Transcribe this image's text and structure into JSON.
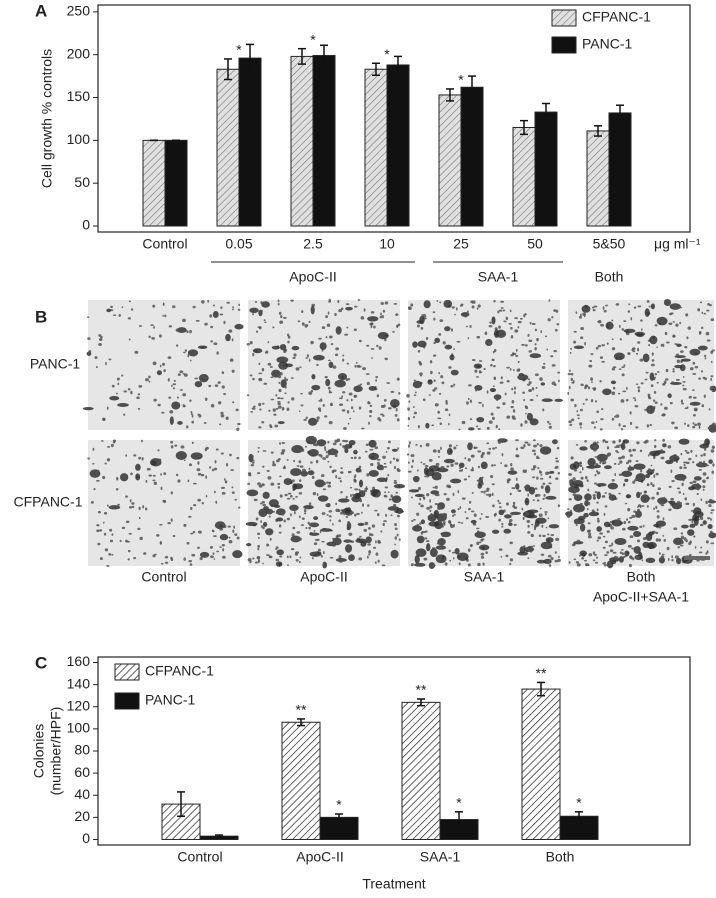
{
  "chart_data": [
    {
      "type": "bar",
      "panel": "A",
      "ylabel": "Cell growth % controls",
      "categories": [
        "Control",
        "0.05",
        "2.5",
        "10",
        "25",
        "50",
        "5&50"
      ],
      "x_unit": "μg ml⁻¹",
      "groups": [
        {
          "label": "ApoC-II",
          "from": "0.05",
          "to": "10"
        },
        {
          "label": "SAA-1",
          "from": "25",
          "to": "50"
        },
        {
          "label": "Both",
          "from": "5&50",
          "to": "5&50"
        }
      ],
      "series": [
        {
          "name": "CFPANC-1",
          "color": "#d9d9d9",
          "pattern": "hatch",
          "values": [
            100,
            183,
            198,
            183,
            153,
            115,
            111
          ],
          "errors": [
            0,
            12,
            9,
            7,
            7,
            8,
            6
          ]
        },
        {
          "name": "PANC-1",
          "color": "#111111",
          "values": [
            100,
            196,
            199,
            188,
            162,
            133,
            132
          ],
          "errors": [
            0,
            16,
            12,
            10,
            13,
            10,
            9
          ]
        }
      ],
      "annotations": [
        {
          "series": 0,
          "category": "0.05",
          "text": "*"
        },
        {
          "series": 0,
          "category": "2.5",
          "text": "*"
        },
        {
          "series": 0,
          "category": "10",
          "text": "*"
        },
        {
          "series": 0,
          "category": "25",
          "text": "*"
        }
      ],
      "ylim": [
        -7,
        258
      ],
      "yticks": [
        0,
        50,
        100,
        150,
        200,
        250
      ],
      "legend": "upper right"
    },
    {
      "type": "bar",
      "panel": "C",
      "ylabel": [
        "Colonies",
        "(number/HPF)"
      ],
      "xlabel": "Treatment",
      "categories": [
        "Control",
        "ApoC-II",
        "SAA-1",
        "Both"
      ],
      "series": [
        {
          "name": "CFPANC-1",
          "color": "#ffffff",
          "pattern": "hatch",
          "values": [
            32,
            106,
            124,
            136
          ],
          "errors": [
            11,
            3,
            3,
            6
          ]
        },
        {
          "name": "PANC-1",
          "color": "#111111",
          "values": [
            3,
            20,
            18,
            21
          ],
          "errors": [
            1,
            3,
            7,
            4
          ]
        }
      ],
      "annotations": [
        {
          "series": 0,
          "category": "ApoC-II",
          "text": "**"
        },
        {
          "series": 0,
          "category": "SAA-1",
          "text": "**"
        },
        {
          "series": 0,
          "category": "Both",
          "text": "**"
        },
        {
          "series": 1,
          "category": "ApoC-II",
          "text": "*"
        },
        {
          "series": 1,
          "category": "SAA-1",
          "text": "*"
        },
        {
          "series": 1,
          "category": "Both",
          "text": "*"
        }
      ],
      "ylim": [
        -5,
        165
      ],
      "yticks": [
        0,
        20,
        40,
        60,
        80,
        100,
        120,
        140,
        160
      ],
      "legend": "upper left"
    }
  ],
  "panel_b": {
    "panel": "B",
    "rows": [
      "PANC-1",
      "CFPANC-1"
    ],
    "columns": [
      "Control",
      "ApoC-II",
      "SAA-1",
      "Both"
    ],
    "subcaption": "ApoC-II+SAA-1"
  }
}
